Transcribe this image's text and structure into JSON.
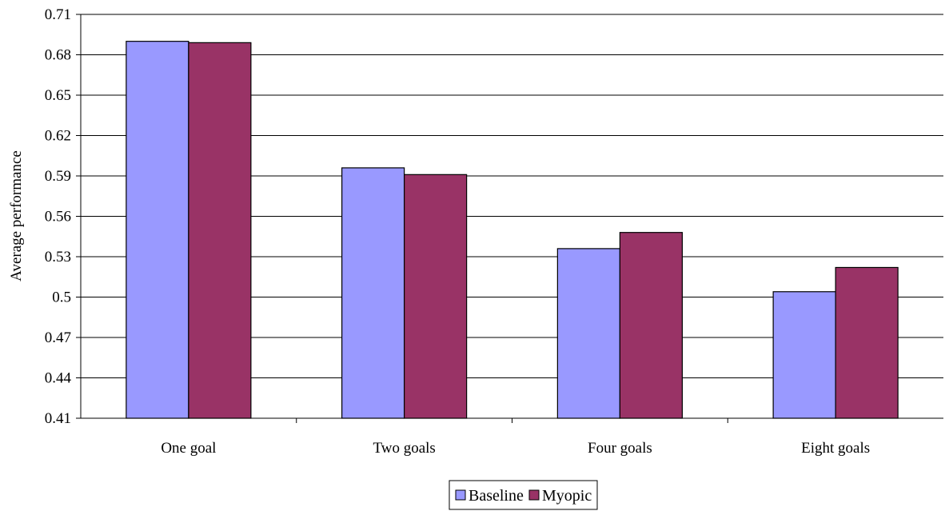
{
  "chart_data": {
    "type": "bar",
    "categories": [
      "One goal",
      "Two goals",
      "Four goals",
      "Eight goals"
    ],
    "series": [
      {
        "name": "Baseline",
        "values": [
          0.69,
          0.596,
          0.536,
          0.504
        ],
        "color": "#9999ff"
      },
      {
        "name": "Myopic",
        "values": [
          0.689,
          0.591,
          0.548,
          0.522
        ],
        "color": "#993366"
      }
    ],
    "ylabel": "Average performance",
    "xlabel": "",
    "ylim": [
      0.41,
      0.71
    ],
    "yticks": [
      "0.41",
      "0.44",
      "0.47",
      "0.5",
      "0.53",
      "0.56",
      "0.59",
      "0.62",
      "0.65",
      "0.68",
      "0.71"
    ],
    "grid": true,
    "legend_position": "bottom"
  }
}
